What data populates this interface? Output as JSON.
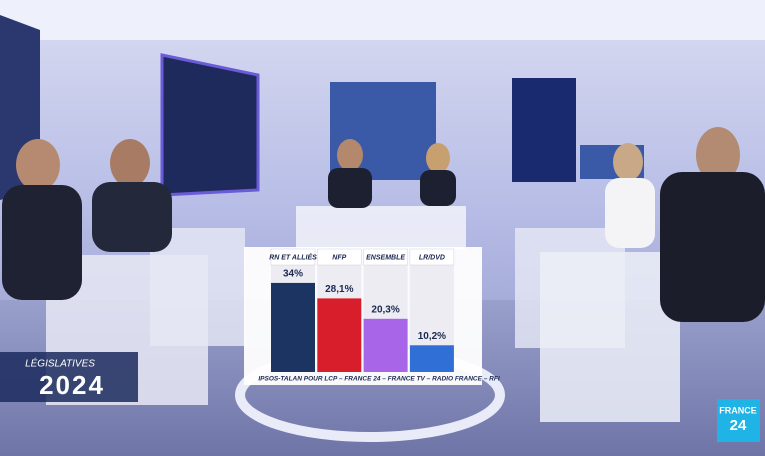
{
  "chart_data": {
    "type": "bar",
    "categories": [
      "RN ET ALLIÉS",
      "NFP",
      "ENSEMBLE",
      "LR/DVD"
    ],
    "values": [
      34,
      28.1,
      20.3,
      10.2
    ],
    "value_labels": [
      "34%",
      "28,1%",
      "20,3%",
      "10,2%"
    ],
    "colors": [
      "#1b3461",
      "#d81e2a",
      "#a865e8",
      "#2f6fd6"
    ],
    "note": "IPSOS-TALAN POUR LCP – FRANCE 24 – FRANCE TV – RADIO FRANCE – RFI"
  },
  "badge": {
    "title": "LÉGISLATIVES",
    "year": "2024"
  },
  "logo": {
    "line1": "FRANCE",
    "line2": "24"
  }
}
